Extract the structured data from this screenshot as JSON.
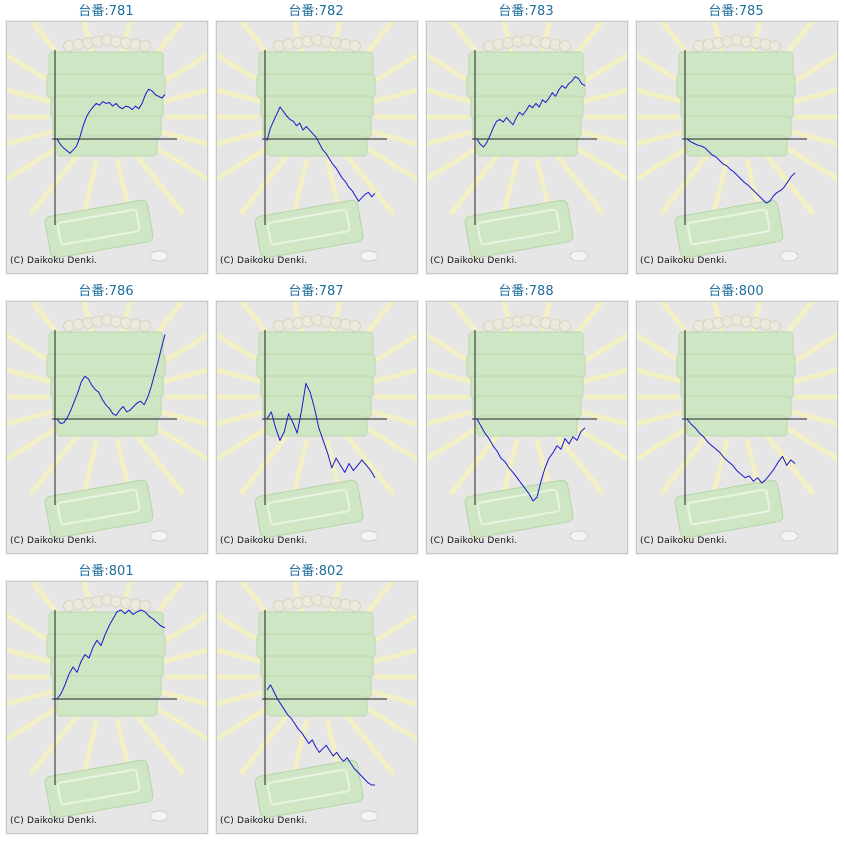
{
  "page": {
    "copyright": "(C) Daikoku Denki."
  },
  "colors": {
    "line": "#1a1acc",
    "axis": "#222222",
    "title": "#1f6e9e",
    "panel_bg": "#e6e6e6",
    "rays": "#f3f0c4",
    "machine": "#cfe6c4"
  },
  "chart_data": [
    {
      "type": "line",
      "title": "台番:781",
      "y": [
        0,
        -0.06,
        -0.1,
        -0.13,
        -0.16,
        -0.12,
        -0.08,
        0.02,
        0.15,
        0.25,
        0.31,
        0.36,
        0.4,
        0.38,
        0.42,
        0.4,
        0.41,
        0.37,
        0.4,
        0.36,
        0.34,
        0.37,
        0.36,
        0.33,
        0.37,
        0.34,
        0.4,
        0.5,
        0.56,
        0.54,
        0.5,
        0.48,
        0.46,
        0.5
      ]
    },
    {
      "type": "line",
      "title": "台番:782",
      "y": [
        -0.02,
        0.12,
        0.2,
        0.28,
        0.36,
        0.31,
        0.26,
        0.22,
        0.2,
        0.15,
        0.18,
        0.1,
        0.14,
        0.1,
        0.06,
        0.02,
        -0.05,
        -0.12,
        -0.16,
        -0.22,
        -0.28,
        -0.32,
        -0.38,
        -0.44,
        -0.48,
        -0.54,
        -0.58,
        -0.64,
        -0.7,
        -0.66,
        -0.62,
        -0.6,
        -0.65,
        -0.61
      ]
    },
    {
      "type": "line",
      "title": "台番:783",
      "y": [
        0,
        -0.06,
        -0.09,
        -0.04,
        0.04,
        0.13,
        0.2,
        0.22,
        0.19,
        0.24,
        0.2,
        0.16,
        0.24,
        0.3,
        0.27,
        0.32,
        0.38,
        0.35,
        0.4,
        0.36,
        0.44,
        0.41,
        0.46,
        0.52,
        0.48,
        0.55,
        0.6,
        0.57,
        0.62,
        0.65,
        0.7,
        0.68,
        0.62,
        0.6
      ]
    },
    {
      "type": "line",
      "title": "台番:785",
      "y": [
        0,
        -0.03,
        -0.05,
        -0.07,
        -0.08,
        -0.1,
        -0.14,
        -0.18,
        -0.2,
        -0.24,
        -0.28,
        -0.3,
        -0.34,
        -0.37,
        -0.41,
        -0.45,
        -0.49,
        -0.52,
        -0.56,
        -0.6,
        -0.64,
        -0.68,
        -0.72,
        -0.7,
        -0.64,
        -0.6,
        -0.58,
        -0.54,
        -0.48,
        -0.42,
        -0.38
      ]
    },
    {
      "type": "line",
      "title": "台番:786",
      "y": [
        0,
        -0.05,
        -0.04,
        0.02,
        0.1,
        0.2,
        0.3,
        0.42,
        0.48,
        0.45,
        0.38,
        0.33,
        0.3,
        0.22,
        0.16,
        0.12,
        0.06,
        0.04,
        0.1,
        0.14,
        0.08,
        0.1,
        0.14,
        0.18,
        0.2,
        0.16,
        0.24,
        0.36,
        0.5,
        0.64,
        0.8,
        0.95
      ]
    },
    {
      "type": "line",
      "title": "台番:787",
      "y": [
        0,
        0.08,
        -0.1,
        -0.24,
        -0.14,
        0.06,
        -0.04,
        -0.16,
        0.1,
        0.4,
        0.3,
        0.12,
        -0.1,
        -0.24,
        -0.38,
        -0.55,
        -0.44,
        -0.52,
        -0.6,
        -0.5,
        -0.58,
        -0.52,
        -0.46,
        -0.52,
        -0.58,
        -0.66
      ]
    },
    {
      "type": "line",
      "title": "台番:788",
      "y": [
        0,
        -0.08,
        -0.16,
        -0.22,
        -0.3,
        -0.36,
        -0.44,
        -0.48,
        -0.55,
        -0.6,
        -0.66,
        -0.72,
        -0.78,
        -0.84,
        -0.92,
        -0.88,
        -0.7,
        -0.55,
        -0.44,
        -0.38,
        -0.3,
        -0.34,
        -0.22,
        -0.28,
        -0.2,
        -0.24,
        -0.14,
        -0.1
      ]
    },
    {
      "type": "line",
      "title": "台番:800",
      "y": [
        0,
        -0.06,
        -0.1,
        -0.16,
        -0.2,
        -0.26,
        -0.3,
        -0.34,
        -0.38,
        -0.44,
        -0.48,
        -0.52,
        -0.58,
        -0.62,
        -0.66,
        -0.64,
        -0.7,
        -0.66,
        -0.72,
        -0.68,
        -0.62,
        -0.56,
        -0.48,
        -0.42,
        -0.52,
        -0.46,
        -0.5
      ]
    },
    {
      "type": "line",
      "title": "台番:801",
      "y": [
        0,
        0.06,
        0.16,
        0.28,
        0.36,
        0.3,
        0.42,
        0.5,
        0.46,
        0.58,
        0.66,
        0.6,
        0.72,
        0.82,
        0.9,
        0.98,
        1.02,
        0.96,
        1.0,
        0.95,
        0.98,
        1.02,
        0.98,
        0.93,
        0.9,
        0.86,
        0.82,
        0.8
      ]
    },
    {
      "type": "line",
      "title": "台番:802",
      "y": [
        0.1,
        0.16,
        0.08,
        0.0,
        -0.06,
        -0.12,
        -0.18,
        -0.22,
        -0.28,
        -0.34,
        -0.38,
        -0.44,
        -0.5,
        -0.46,
        -0.54,
        -0.6,
        -0.56,
        -0.52,
        -0.58,
        -0.64,
        -0.6,
        -0.66,
        -0.7,
        -0.66,
        -0.72,
        -0.78,
        -0.82,
        -0.86,
        -0.9,
        -0.94,
        -0.98,
        -1.0
      ]
    }
  ]
}
